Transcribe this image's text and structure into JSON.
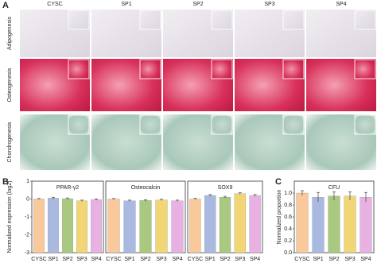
{
  "panel_labels": [
    "A",
    "B",
    "C"
  ],
  "panel_a": {
    "columns": [
      "CYSC",
      "SP1",
      "SP2",
      "SP3",
      "SP4"
    ],
    "rows": [
      "Adipogenesis",
      "Osteogenesis",
      "Chondrogenesis"
    ]
  },
  "chart_data": [
    {
      "type": "bar",
      "title": "PPAR-γ2",
      "ylabel": "Normalized expression (log2)",
      "categories": [
        "CYSC",
        "SP1",
        "SP2",
        "SP3",
        "SP4"
      ],
      "values": [
        0,
        0.05,
        0.02,
        -0.1,
        -0.03
      ],
      "errors": [
        0.03,
        0.05,
        0.04,
        0.04,
        0.04
      ],
      "colors": [
        "#f9c89b",
        "#a9b9e0",
        "#a8c97f",
        "#f2d675",
        "#e9b1e3"
      ],
      "ylim": [
        -3,
        1
      ],
      "yticks": [
        -3,
        -2,
        -1,
        0,
        1
      ]
    },
    {
      "type": "bar",
      "title": "Osteocalcin",
      "categories": [
        "CYSC",
        "SP1",
        "SP2",
        "SP3",
        "SP4"
      ],
      "values": [
        0,
        -0.1,
        -0.08,
        -0.05,
        -0.1
      ],
      "errors": [
        0.03,
        0.04,
        0.04,
        0.04,
        0.04
      ],
      "colors": [
        "#f9c89b",
        "#a9b9e0",
        "#a8c97f",
        "#f2d675",
        "#e9b1e3"
      ],
      "ylim": [
        -3,
        1
      ]
    },
    {
      "type": "bar",
      "title": "SOX9",
      "categories": [
        "CYSC",
        "SP1",
        "SP2",
        "SP3",
        "SP4"
      ],
      "values": [
        0,
        0.2,
        0.1,
        0.3,
        0.2
      ],
      "errors": [
        0.04,
        0.05,
        0.05,
        0.05,
        0.05
      ],
      "colors": [
        "#f9c89b",
        "#a9b9e0",
        "#a8c97f",
        "#f2d675",
        "#e9b1e3"
      ],
      "ylim": [
        -3,
        1
      ]
    },
    {
      "type": "bar",
      "title": "CFU",
      "ylabel": "Normalized proportion",
      "categories": [
        "CYSC",
        "SP1",
        "SP2",
        "SP3",
        "SP4"
      ],
      "values": [
        1.0,
        0.93,
        0.95,
        0.95,
        0.93
      ],
      "errors": [
        0.04,
        0.08,
        0.07,
        0.07,
        0.08
      ],
      "colors": [
        "#f9c89b",
        "#a9b9e0",
        "#a8c97f",
        "#f2d675",
        "#e9b1e3"
      ],
      "ylim": [
        0,
        1.2
      ],
      "yticks": [
        {
          "value": 0,
          "label": "0.0"
        },
        {
          "value": 0.2,
          "label": "0.2"
        },
        {
          "value": 0.4,
          "label": "0.4"
        },
        {
          "value": 0.6,
          "label": "0.6"
        },
        {
          "value": 0.8,
          "label": "0.8"
        },
        {
          "value": 1,
          "label": "1.0"
        }
      ]
    }
  ]
}
